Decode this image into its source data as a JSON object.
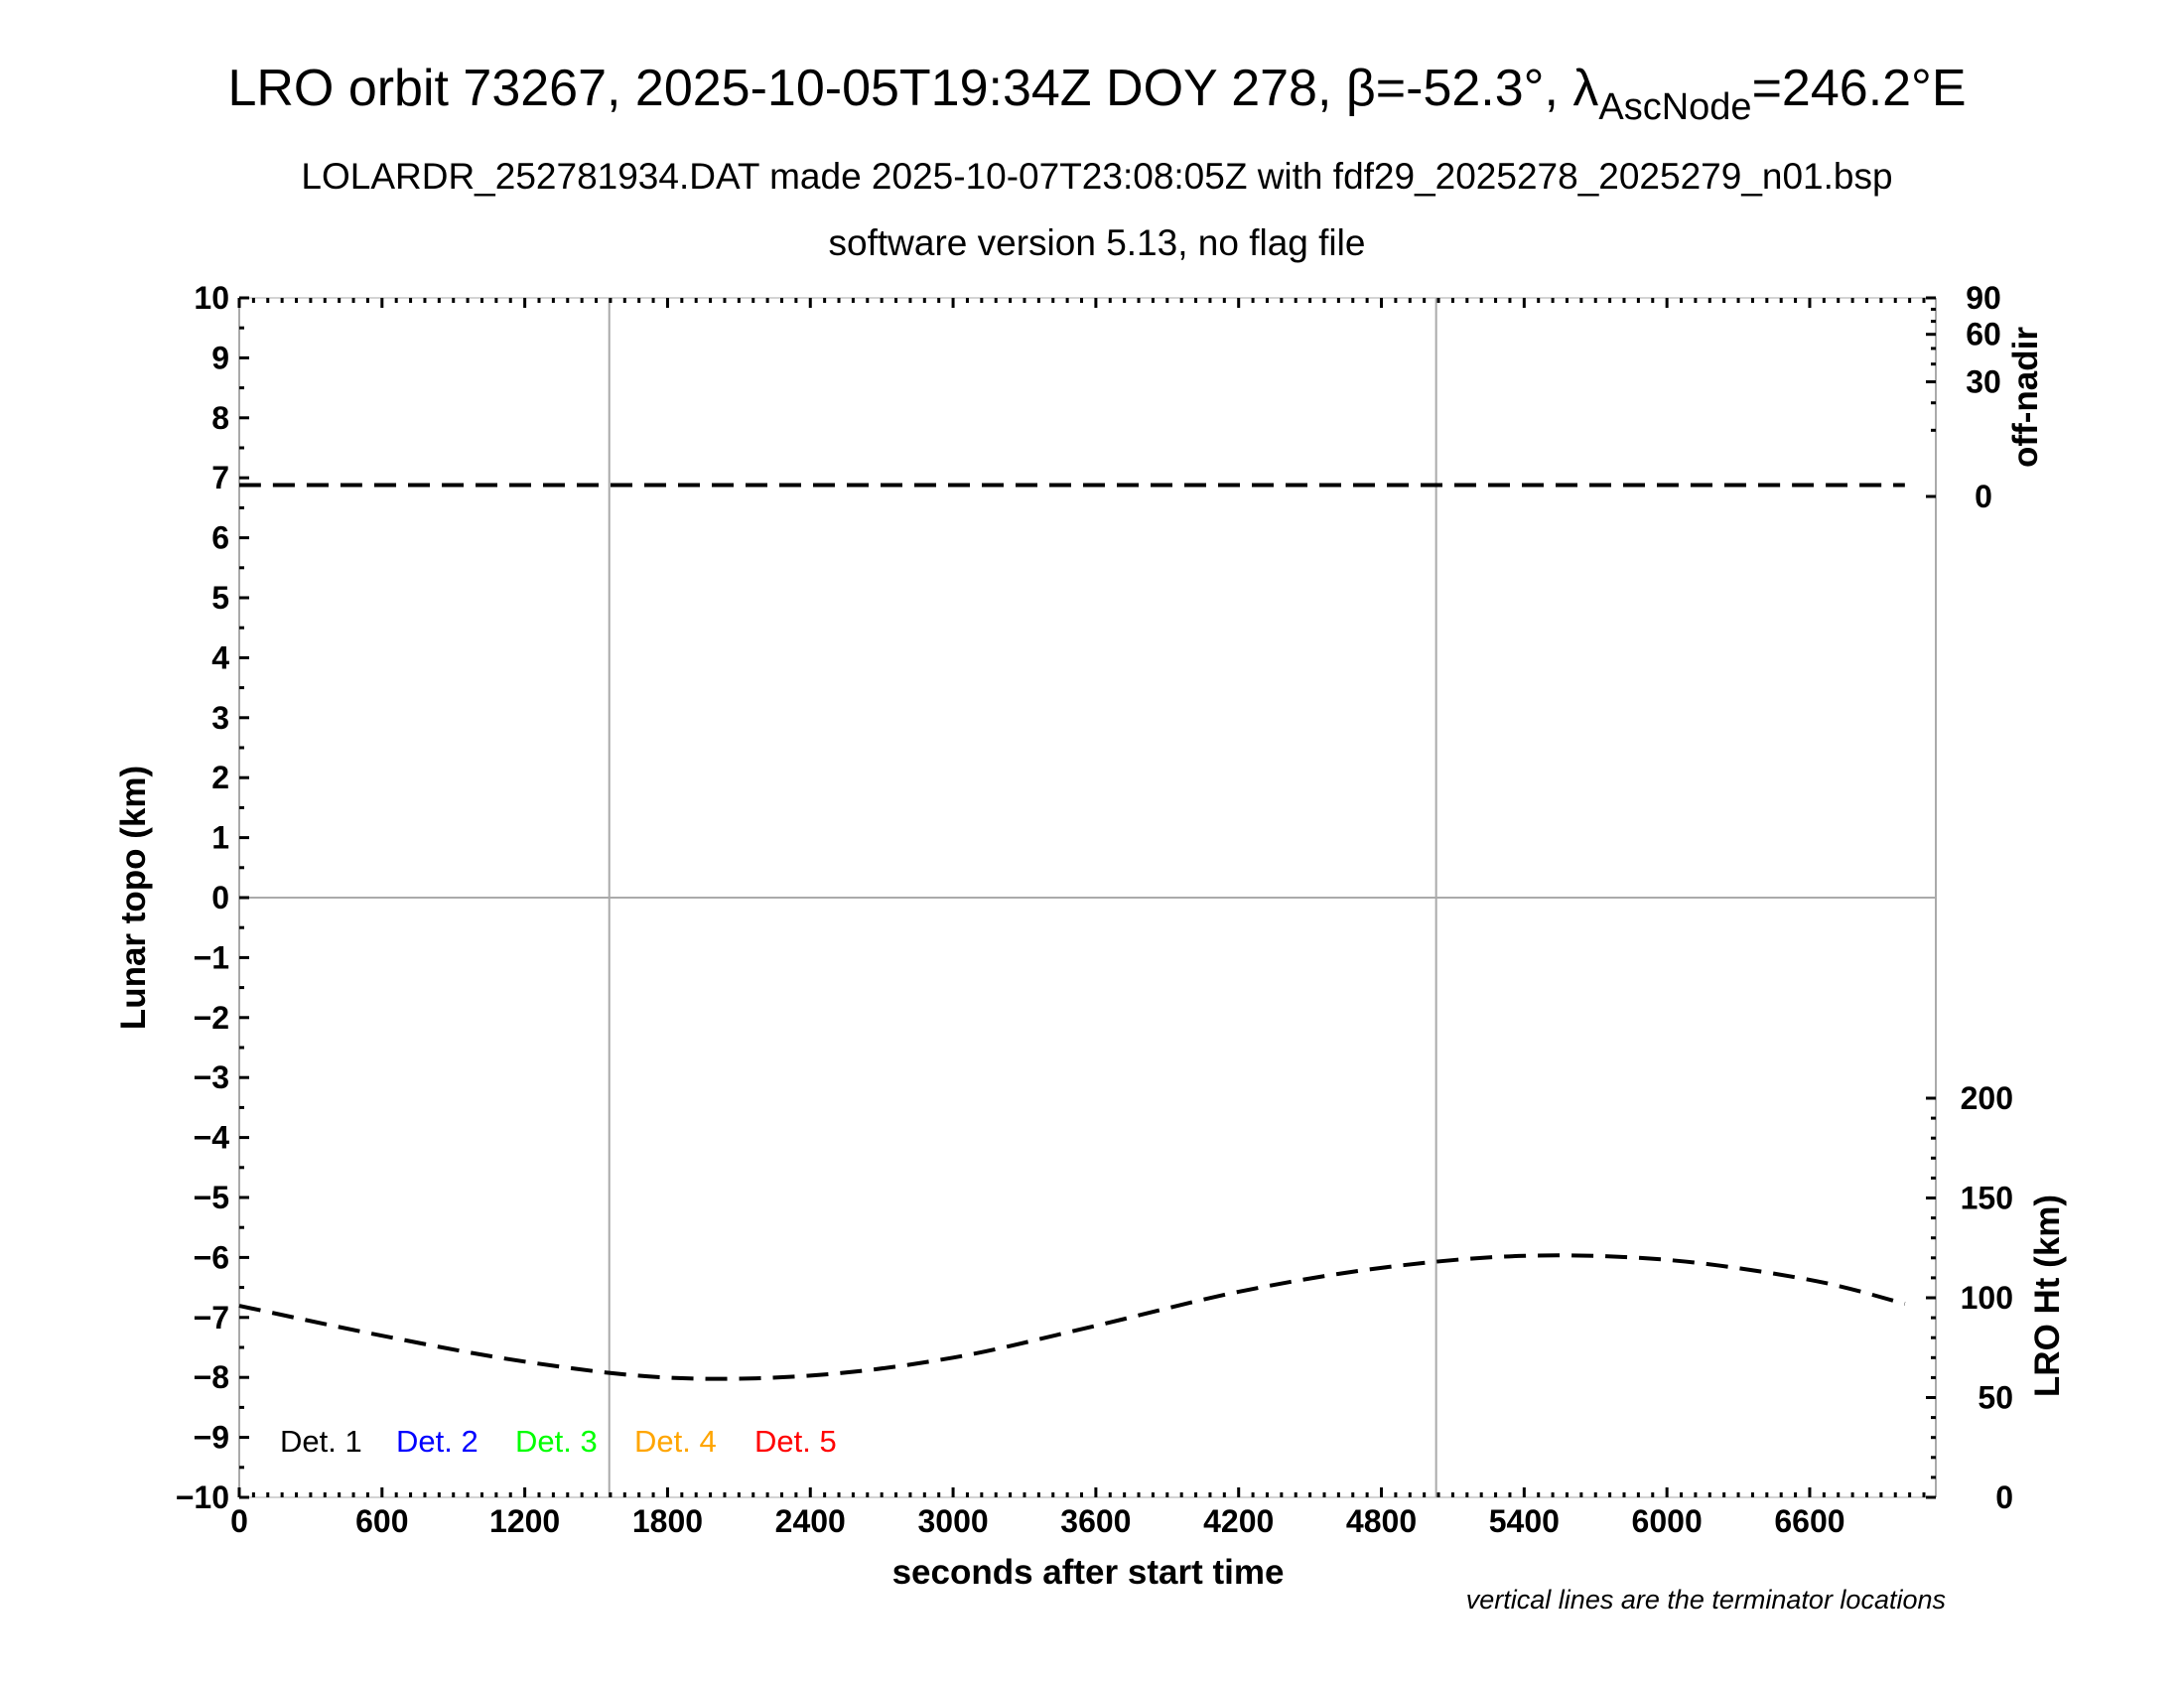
{
  "header": {
    "title_main": "LRO orbit 73267, 2025-10-05T19:34Z DOY 278, β=-52.3°, λ",
    "title_sub": "AscNode",
    "title_end": "=246.2°E",
    "subtitle": "LOLARDR_252781934.DAT made 2025-10-07T23:08:05Z with fdf29_2025278_2025279_n01.bsp",
    "subtitle2": "software version 5.13, no flag file"
  },
  "chart_data": {
    "type": "line",
    "xlabel": "seconds after start time",
    "xlim": [
      0,
      7130
    ],
    "xticks": [
      "0",
      "600",
      "1200",
      "1800",
      "2400",
      "3000",
      "3600",
      "4200",
      "4800",
      "5400",
      "6000",
      "6600"
    ],
    "ylabel_left": "Lunar topo (km)",
    "ylim_left": [
      -10,
      10
    ],
    "yticks_left": [
      "10",
      "9",
      "8",
      "7",
      "6",
      "5",
      "4",
      "3",
      "2",
      "1",
      "0",
      "−1",
      "−2",
      "−3",
      "−4",
      "−5",
      "−6",
      "−7",
      "−8",
      "−9",
      "−10"
    ],
    "ylabel_right_top": "off-nadir",
    "right_top_scale": "sqrt",
    "ylim_right_top": [
      0,
      90
    ],
    "yticks_right_top": [
      "0",
      "30",
      "60",
      "90"
    ],
    "ylabel_right_bottom": "LRO Ht (km)",
    "ylim_right_bottom": [
      0,
      200
    ],
    "yticks_right_bottom": [
      "0",
      "50",
      "100",
      "150",
      "200"
    ],
    "grid": "horizontal line at 0 km; vertical lines at terminators",
    "terminators_s": [
      1555,
      5030
    ],
    "note": "vertical lines are the terminator locations",
    "legend": [
      {
        "label": "Det. 1",
        "color": "#000000"
      },
      {
        "label": "Det. 2",
        "color": "#0000ff"
      },
      {
        "label": "Det. 3",
        "color": "#00ff00"
      },
      {
        "label": "Det. 4",
        "color": "#ffa500"
      },
      {
        "label": "Det. 5",
        "color": "#ff0000"
      }
    ],
    "series": [
      {
        "axis": "right_top",
        "style": "dashed",
        "x": [
          0,
          1000,
          2000,
          3000,
          4000,
          5000,
          6000,
          7000
        ],
        "values": [
          0.3,
          0.3,
          0.3,
          0.3,
          0.3,
          0.3,
          0.3,
          0.3
        ]
      },
      {
        "axis": "right_bottom",
        "style": "dashed",
        "x": [
          0,
          600,
          1200,
          1800,
          2400,
          3000,
          3600,
          4200,
          4800,
          5400,
          6000,
          6600,
          7000
        ],
        "values": [
          96,
          81,
          68,
          60,
          61,
          70,
          86,
          103,
          115,
          121,
          119,
          109,
          97
        ]
      }
    ]
  }
}
